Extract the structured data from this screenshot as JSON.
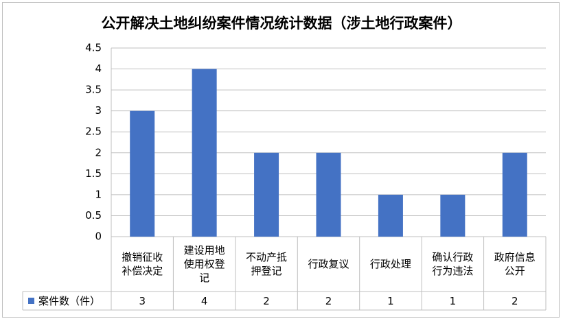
{
  "chart_data": {
    "type": "bar",
    "title": "公开解决土地纠纷案件情况统计数据（涉土地行政案件）",
    "categories": [
      "撤销征收补偿决定",
      "建设用地使用权登记",
      "不动产抵押登记",
      "行政复议",
      "行政处理",
      "确认行政行为违法",
      "政府信息公开"
    ],
    "series": [
      {
        "name": "案件数（件）",
        "color": "#4472c4",
        "values": [
          3,
          4,
          2,
          2,
          1,
          1,
          2
        ]
      }
    ],
    "ylim": [
      0,
      4.5
    ],
    "yticks": [
      0,
      0.5,
      1,
      1.5,
      2,
      2.5,
      3,
      3.5,
      4,
      4.5
    ],
    "grid": true,
    "data_table": true
  }
}
